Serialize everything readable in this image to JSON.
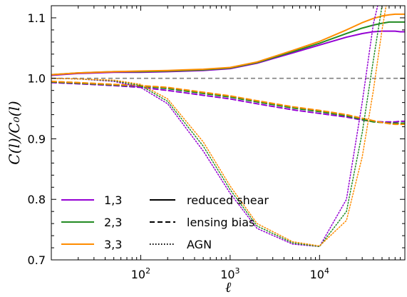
{
  "chart_data": {
    "type": "line",
    "xlabel": "ℓ",
    "ylabel": "C(l)/C₀(l)",
    "xscale": "log",
    "xlim": [
      10,
      90000
    ],
    "ylim": [
      0.7,
      1.12
    ],
    "grid": false,
    "x_tick_labels": [
      {
        "value": 100,
        "base": "10",
        "exp": "2"
      },
      {
        "value": 1000,
        "base": "10",
        "exp": "3"
      },
      {
        "value": 10000,
        "base": "10",
        "exp": "4"
      }
    ],
    "y_tick_labels": [
      {
        "value": 0.7,
        "label": "0.7"
      },
      {
        "value": 0.8,
        "label": "0.8"
      },
      {
        "value": 0.9,
        "label": "0.9"
      },
      {
        "value": 1.0,
        "label": "1.0"
      },
      {
        "value": 1.1,
        "label": "1.1"
      }
    ],
    "reference_line": {
      "y": 1.0,
      "color": "#808080"
    },
    "colors": {
      "1,3": "#9400d3",
      "2,3": "#228b22",
      "3,3": "#ff8c00"
    },
    "x": [
      10,
      20,
      50,
      100,
      200,
      500,
      1000,
      2000,
      5000,
      10000,
      20000,
      30000,
      40000,
      50000,
      60000,
      70000,
      80000,
      90000
    ],
    "series": [
      {
        "bin": "1,3",
        "effect": "reduced shear",
        "style": "solid",
        "values": [
          1.005,
          1.008,
          1.01,
          1.01,
          1.011,
          1.013,
          1.016,
          1.025,
          1.042,
          1.055,
          1.068,
          1.074,
          1.077,
          1.078,
          1.078,
          1.078,
          1.077,
          1.077
        ]
      },
      {
        "bin": "2,3",
        "effect": "reduced shear",
        "style": "solid",
        "values": [
          1.006,
          1.009,
          1.011,
          1.011,
          1.012,
          1.014,
          1.017,
          1.026,
          1.044,
          1.058,
          1.074,
          1.083,
          1.088,
          1.091,
          1.093,
          1.093,
          1.093,
          1.093
        ]
      },
      {
        "bin": "3,3",
        "effect": "reduced shear",
        "style": "solid",
        "values": [
          1.006,
          1.009,
          1.011,
          1.012,
          1.013,
          1.015,
          1.018,
          1.027,
          1.046,
          1.061,
          1.08,
          1.092,
          1.099,
          1.103,
          1.105,
          1.106,
          1.106,
          1.106
        ]
      },
      {
        "bin": "1,3",
        "effect": "lensing bias",
        "style": "dashed",
        "values": [
          0.993,
          0.991,
          0.988,
          0.985,
          0.98,
          0.972,
          0.966,
          0.958,
          0.948,
          0.942,
          0.936,
          0.931,
          0.929,
          0.928,
          0.928,
          0.928,
          0.929,
          0.929
        ]
      },
      {
        "bin": "2,3",
        "effect": "lensing bias",
        "style": "dashed",
        "values": [
          0.994,
          0.992,
          0.989,
          0.987,
          0.983,
          0.975,
          0.969,
          0.961,
          0.951,
          0.945,
          0.938,
          0.932,
          0.928,
          0.927,
          0.926,
          0.926,
          0.926,
          0.926
        ]
      },
      {
        "bin": "3,3",
        "effect": "lensing bias",
        "style": "dashed",
        "values": [
          0.995,
          0.993,
          0.99,
          0.988,
          0.985,
          0.977,
          0.971,
          0.963,
          0.953,
          0.947,
          0.94,
          0.934,
          0.93,
          0.927,
          0.925,
          0.924,
          0.924,
          0.924
        ]
      },
      {
        "bin": "1,3",
        "effect": "AGN",
        "style": "dotted",
        "values": [
          1.0,
          0.999,
          0.995,
          0.985,
          0.958,
          0.88,
          0.81,
          0.752,
          0.726,
          0.722,
          0.8,
          0.96,
          1.09,
          1.15,
          1.15,
          1.15,
          1.15,
          1.15
        ]
      },
      {
        "bin": "2,3",
        "effect": "AGN",
        "style": "dotted",
        "values": [
          1.0,
          0.999,
          0.996,
          0.988,
          0.962,
          0.888,
          0.816,
          0.756,
          0.728,
          0.722,
          0.78,
          0.91,
          1.03,
          1.12,
          1.15,
          1.15,
          1.15,
          1.15
        ]
      },
      {
        "bin": "3,3",
        "effect": "AGN",
        "style": "dotted",
        "values": [
          1.0,
          0.999,
          0.997,
          0.99,
          0.966,
          0.895,
          0.822,
          0.76,
          0.73,
          0.723,
          0.765,
          0.87,
          0.98,
          1.08,
          1.15,
          1.15,
          1.15,
          1.15
        ]
      }
    ],
    "legend": {
      "placement": "bottom-left",
      "bins": [
        {
          "label": "1,3",
          "color": "#9400d3"
        },
        {
          "label": "2,3",
          "color": "#228b22"
        },
        {
          "label": "3,3",
          "color": "#ff8c00"
        }
      ],
      "styles": [
        {
          "label": "reduced shear",
          "style": "solid"
        },
        {
          "label": "lensing bias",
          "style": "dashed"
        },
        {
          "label": "AGN",
          "style": "dotted"
        }
      ]
    }
  }
}
